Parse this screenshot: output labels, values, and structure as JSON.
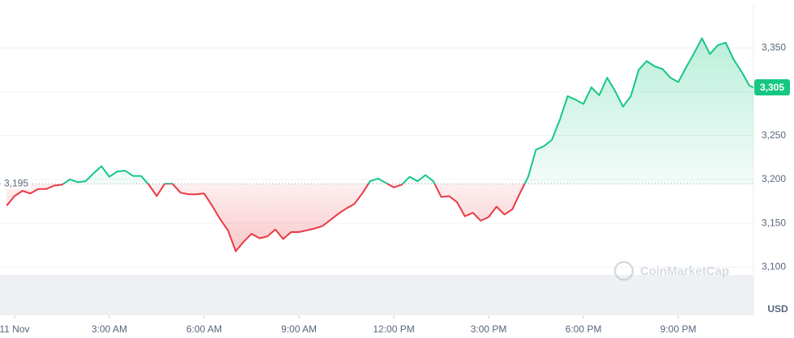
{
  "chart_data": {
    "type": "line",
    "currency": "USD",
    "watermark": "CoinMarketCap",
    "x": [
      -0.25,
      0,
      0.25,
      0.5,
      0.75,
      1,
      1.25,
      1.5,
      1.75,
      2,
      2.25,
      2.5,
      2.75,
      3,
      3.25,
      3.5,
      3.75,
      4,
      4.25,
      4.5,
      4.75,
      5,
      5.25,
      5.5,
      5.75,
      6,
      6.25,
      6.5,
      6.75,
      7,
      7.25,
      7.5,
      7.75,
      8,
      8.25,
      8.5,
      8.75,
      9,
      9.25,
      9.5,
      9.75,
      10,
      10.25,
      10.5,
      10.75,
      11,
      11.25,
      11.5,
      11.75,
      12,
      12.25,
      12.5,
      12.75,
      13,
      13.25,
      13.5,
      13.75,
      14,
      14.25,
      14.5,
      14.75,
      15,
      15.25,
      15.5,
      15.75,
      16,
      16.25,
      16.5,
      16.75,
      17,
      17.25,
      17.5,
      17.75,
      18,
      18.25,
      18.5,
      18.75,
      19,
      19.25,
      19.5,
      19.75,
      20,
      20.25,
      20.5,
      20.75,
      21,
      21.25,
      21.5,
      21.75,
      22,
      22.25,
      22.5,
      22.75,
      23,
      23.25,
      23.38
    ],
    "values": [
      3170,
      3181,
      3187,
      3184,
      3189,
      3189,
      3193,
      3194,
      3200,
      3197,
      3198,
      3207,
      3215,
      3203,
      3209,
      3210,
      3204,
      3204,
      3194,
      3181,
      3195,
      3195,
      3185,
      3183,
      3183,
      3184,
      3170,
      3155,
      3142,
      3118,
      3129,
      3138,
      3133,
      3135,
      3143,
      3132,
      3140,
      3140,
      3142,
      3144,
      3147,
      3154,
      3161,
      3167,
      3172,
      3184,
      3198,
      3201,
      3196,
      3191,
      3194,
      3203,
      3198,
      3205,
      3198,
      3180,
      3181,
      3174,
      3158,
      3162,
      3153,
      3157,
      3169,
      3160,
      3166,
      3185,
      3203,
      3234,
      3238,
      3245,
      3268,
      3295,
      3291,
      3286,
      3305,
      3296,
      3316,
      3301,
      3283,
      3295,
      3325,
      3335,
      3329,
      3326,
      3316,
      3311,
      3328,
      3344,
      3361,
      3343,
      3353,
      3356,
      3337,
      3323,
      3307,
      3305
    ],
    "up_color": "#16c784",
    "down_color": "#ea3943",
    "baseline": {
      "value": 3195,
      "label": "3,195"
    },
    "last_price": {
      "value": 3305,
      "label": "3,305"
    },
    "xlim": [
      -0.46,
      23.38
    ],
    "xticks": [
      {
        "value": 0,
        "label": "11 Nov"
      },
      {
        "value": 3,
        "label": "3:00 AM"
      },
      {
        "value": 6,
        "label": "6:00 AM"
      },
      {
        "value": 9,
        "label": "9:00 AM"
      },
      {
        "value": 12,
        "label": "12:00 PM"
      },
      {
        "value": 15,
        "label": "3:00 PM"
      },
      {
        "value": 18,
        "label": "6:00 PM"
      },
      {
        "value": 21,
        "label": "9:00 PM"
      }
    ],
    "ylim": [
      3045,
      3400
    ],
    "yticks": [
      {
        "value": 3100,
        "label": "3,100"
      },
      {
        "value": 3150,
        "label": "3,150"
      },
      {
        "value": 3200,
        "label": "3,200"
      },
      {
        "value": 3250,
        "label": "3,250"
      },
      {
        "value": 3300,
        "label": "3,300"
      },
      {
        "value": 3350,
        "label": "3,350"
      }
    ],
    "grid": true
  }
}
